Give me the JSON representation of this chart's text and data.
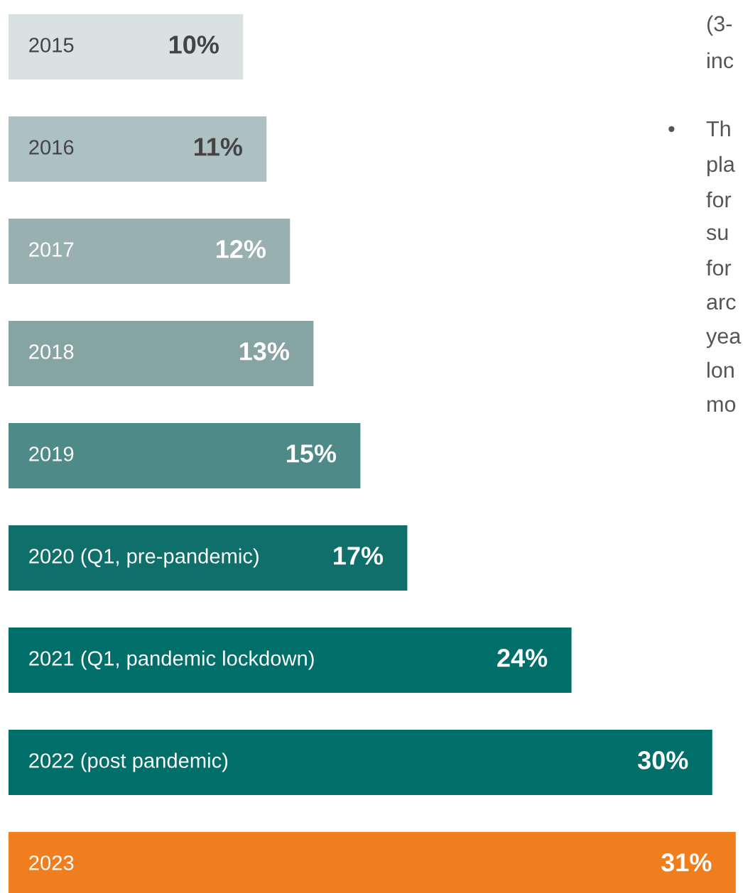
{
  "chart_data": {
    "type": "bar",
    "orientation": "horizontal",
    "data_labels": true,
    "categories": [
      "2015",
      "2016",
      "2017",
      "2018",
      "2019",
      "2020 (Q1, pre-pandemic)",
      "2021 (Q1, pandemic lockdown)",
      "2022 (post pandemic)",
      "2023"
    ],
    "values": [
      10,
      11,
      12,
      13,
      15,
      17,
      24,
      30,
      31
    ],
    "colors": [
      "#d9e1e2",
      "#adc0c2",
      "#98b0b0",
      "#86a4a3",
      "#4e8a88",
      "#0e6f6b",
      "#006e69",
      "#006e69",
      "#f07d1e"
    ],
    "value_labels": [
      "10%",
      "11%",
      "12%",
      "13%",
      "15%",
      "17%",
      "24%",
      "30%",
      "31%"
    ],
    "annotations": [
      "(3-",
      "inc",
      "• Th",
      "pla",
      "for",
      "su",
      "for",
      "arc",
      "yea",
      "lon",
      "mo"
    ]
  }
}
